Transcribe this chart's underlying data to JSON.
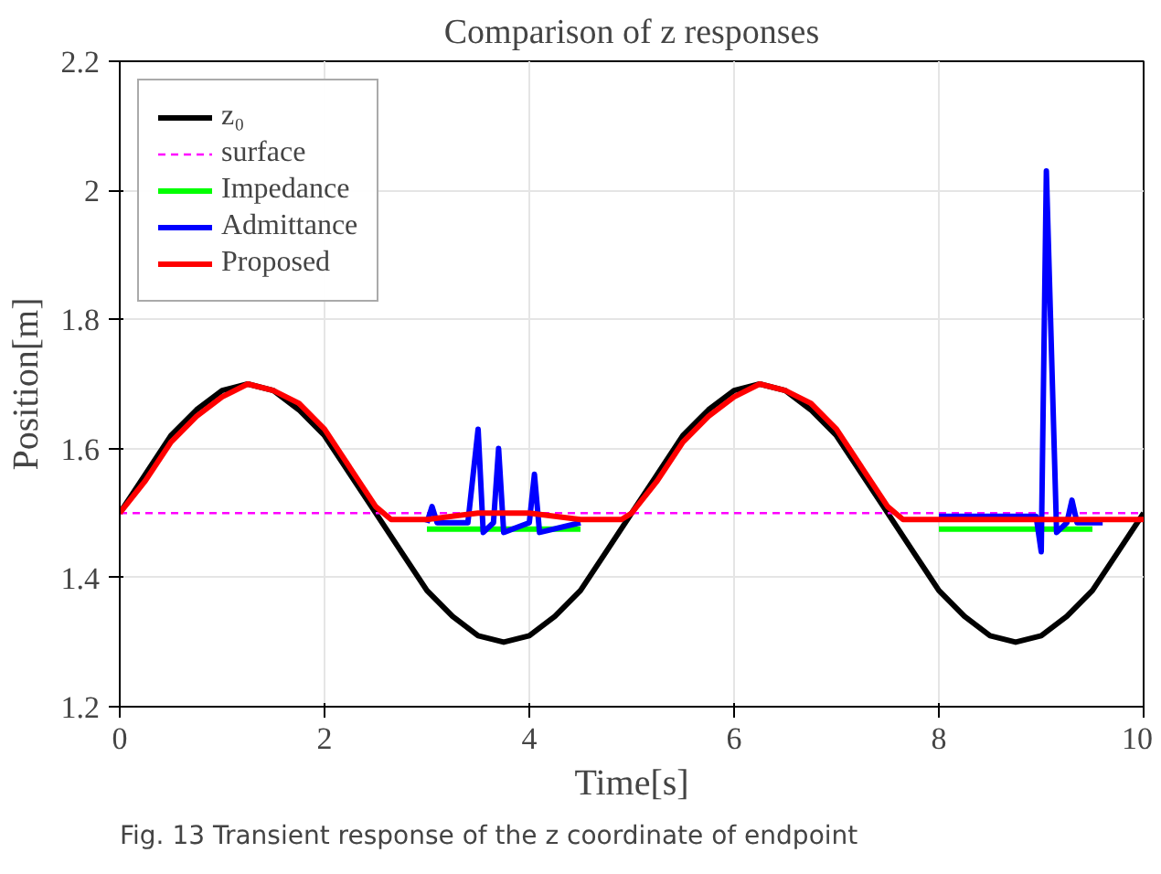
{
  "chart_data": {
    "type": "line",
    "title": "Comparison of z responses",
    "xlabel": "Time[s]",
    "ylabel": "Position[m]",
    "xlim": [
      0,
      10
    ],
    "ylim": [
      1.2,
      2.2
    ],
    "xticks": [
      0,
      2,
      4,
      6,
      8,
      10
    ],
    "yticks": [
      1.2,
      1.4,
      1.6,
      1.8,
      2,
      2.2
    ],
    "grid": true,
    "legend": "top left",
    "line_style": "solid",
    "marker": "none",
    "series": [
      {
        "name": "z₀",
        "color": "#000000",
        "x": [
          0,
          0.25,
          0.5,
          0.75,
          1,
          1.25,
          1.5,
          1.75,
          2,
          2.25,
          2.5,
          2.75,
          3,
          3.25,
          3.5,
          3.75,
          4,
          4.25,
          4.5,
          4.75,
          5,
          5.25,
          5.5,
          5.75,
          6,
          6.25,
          6.5,
          6.75,
          7,
          7.25,
          7.5,
          7.75,
          8,
          8.25,
          8.5,
          8.75,
          9,
          9.25,
          9.5,
          9.75,
          10
        ],
        "values": [
          1.5,
          1.56,
          1.62,
          1.66,
          1.69,
          1.7,
          1.69,
          1.66,
          1.62,
          1.56,
          1.5,
          1.44,
          1.38,
          1.34,
          1.31,
          1.3,
          1.31,
          1.34,
          1.38,
          1.44,
          1.5,
          1.56,
          1.62,
          1.66,
          1.69,
          1.7,
          1.69,
          1.66,
          1.62,
          1.56,
          1.5,
          1.44,
          1.38,
          1.34,
          1.31,
          1.3,
          1.31,
          1.34,
          1.38,
          1.44,
          1.5
        ]
      },
      {
        "name": "surface",
        "color": "#ff00ff",
        "line_style": "dashed",
        "x": [
          0,
          10
        ],
        "values": [
          1.5,
          1.5
        ]
      },
      {
        "name": "Impedance",
        "color": "#00ff00",
        "x": [
          3,
          3.5,
          4,
          4.5,
          6,
          8,
          8.5,
          9,
          9.5
        ],
        "values": [
          1.475,
          1.475,
          1.475,
          1.475,
          null,
          1.475,
          1.475,
          1.475,
          1.475
        ]
      },
      {
        "name": "Admittance",
        "color": "#0000ff",
        "x": [
          3,
          3.05,
          3.1,
          3.4,
          3.5,
          3.55,
          3.65,
          3.7,
          3.75,
          4,
          4.05,
          4.1,
          4.5,
          6,
          8,
          8.5,
          8.95,
          9,
          9.05,
          9.15,
          9.25,
          9.3,
          9.35,
          9.6
        ],
        "values": [
          1.485,
          1.51,
          1.485,
          1.485,
          1.63,
          1.47,
          1.485,
          1.6,
          1.47,
          1.485,
          1.56,
          1.47,
          1.485,
          null,
          1.495,
          1.495,
          1.495,
          1.44,
          2.03,
          1.47,
          1.485,
          1.52,
          1.485,
          1.485
        ]
      },
      {
        "name": "Proposed",
        "color": "#ff0000",
        "x": [
          0,
          0.25,
          0.5,
          0.75,
          1,
          1.25,
          1.5,
          1.75,
          2,
          2.25,
          2.5,
          2.65,
          3,
          3.5,
          4,
          4.5,
          4.9,
          5,
          5.25,
          5.5,
          5.75,
          6,
          6.25,
          6.5,
          6.75,
          7,
          7.25,
          7.5,
          7.65,
          8,
          8.5,
          9,
          9.5,
          9.9,
          10
        ],
        "values": [
          1.5,
          1.55,
          1.61,
          1.65,
          1.68,
          1.7,
          1.69,
          1.67,
          1.63,
          1.57,
          1.51,
          1.49,
          1.49,
          1.5,
          1.5,
          1.49,
          1.49,
          1.5,
          1.55,
          1.61,
          1.65,
          1.68,
          1.7,
          1.69,
          1.67,
          1.63,
          1.57,
          1.51,
          1.49,
          1.49,
          1.49,
          1.49,
          1.49,
          1.49,
          1.49
        ]
      }
    ],
    "annotations": [
      "Fig. 13 Transient response of the z coordinate of endpoint"
    ]
  }
}
